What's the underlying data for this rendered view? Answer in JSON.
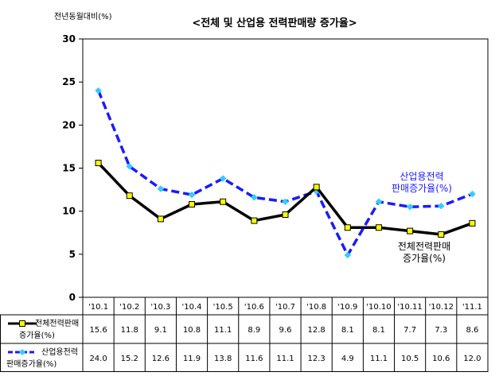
{
  "chart_data": {
    "type": "line",
    "title": "<전체 및 산업용 전력판매량 증가율>",
    "ylabel": "전년동월대비(%)",
    "ylim": [
      0,
      30
    ],
    "yticks": [
      0,
      5,
      10,
      15,
      20,
      25,
      30
    ],
    "grid": false,
    "categories": [
      "'10.1",
      "'10.2",
      "'10.3",
      "'10.4",
      "'10.5",
      "'10.6",
      "'10.7",
      "'10.8",
      "'10.9",
      "'10.10",
      "'10.11",
      "'10.12",
      "'11.1"
    ],
    "series": [
      {
        "name_line1": "전체전력판매",
        "name_line2": "증가율(%)",
        "color": "#000000",
        "marker_color": "#ffff00",
        "style": "solid",
        "values": [
          15.6,
          11.8,
          9.1,
          10.8,
          11.1,
          8.9,
          9.6,
          12.8,
          8.1,
          8.1,
          7.7,
          7.3,
          8.6
        ],
        "labels": [
          "15.6",
          "11.8",
          "9.1",
          "10.8",
          "11.1",
          "8.9",
          "9.6",
          "12.8",
          "8.1",
          "8.1",
          "7.7",
          "7.3",
          "8.6"
        ]
      },
      {
        "name_line1": "산업용전력",
        "name_line2": "판매증가율(%)",
        "color": "#1a1aff",
        "marker_color": "#33ccff",
        "style": "dashed",
        "values": [
          24.0,
          15.2,
          12.6,
          11.9,
          13.8,
          11.6,
          11.1,
          12.3,
          4.9,
          11.1,
          10.5,
          10.6,
          12.0
        ],
        "labels": [
          "24.0",
          "15.2",
          "12.6",
          "11.9",
          "13.8",
          "11.6",
          "11.1",
          "12.3",
          "4.9",
          "11.1",
          "10.5",
          "10.6",
          "12.0"
        ]
      }
    ],
    "annotations": [
      {
        "series": 1,
        "line1": "산업용전력",
        "line2": "판매증가율(%)",
        "color": "#1a1aff"
      },
      {
        "series": 0,
        "line1": "전체전력판매",
        "line2": "증가율(%)",
        "color": "#000000"
      }
    ]
  }
}
